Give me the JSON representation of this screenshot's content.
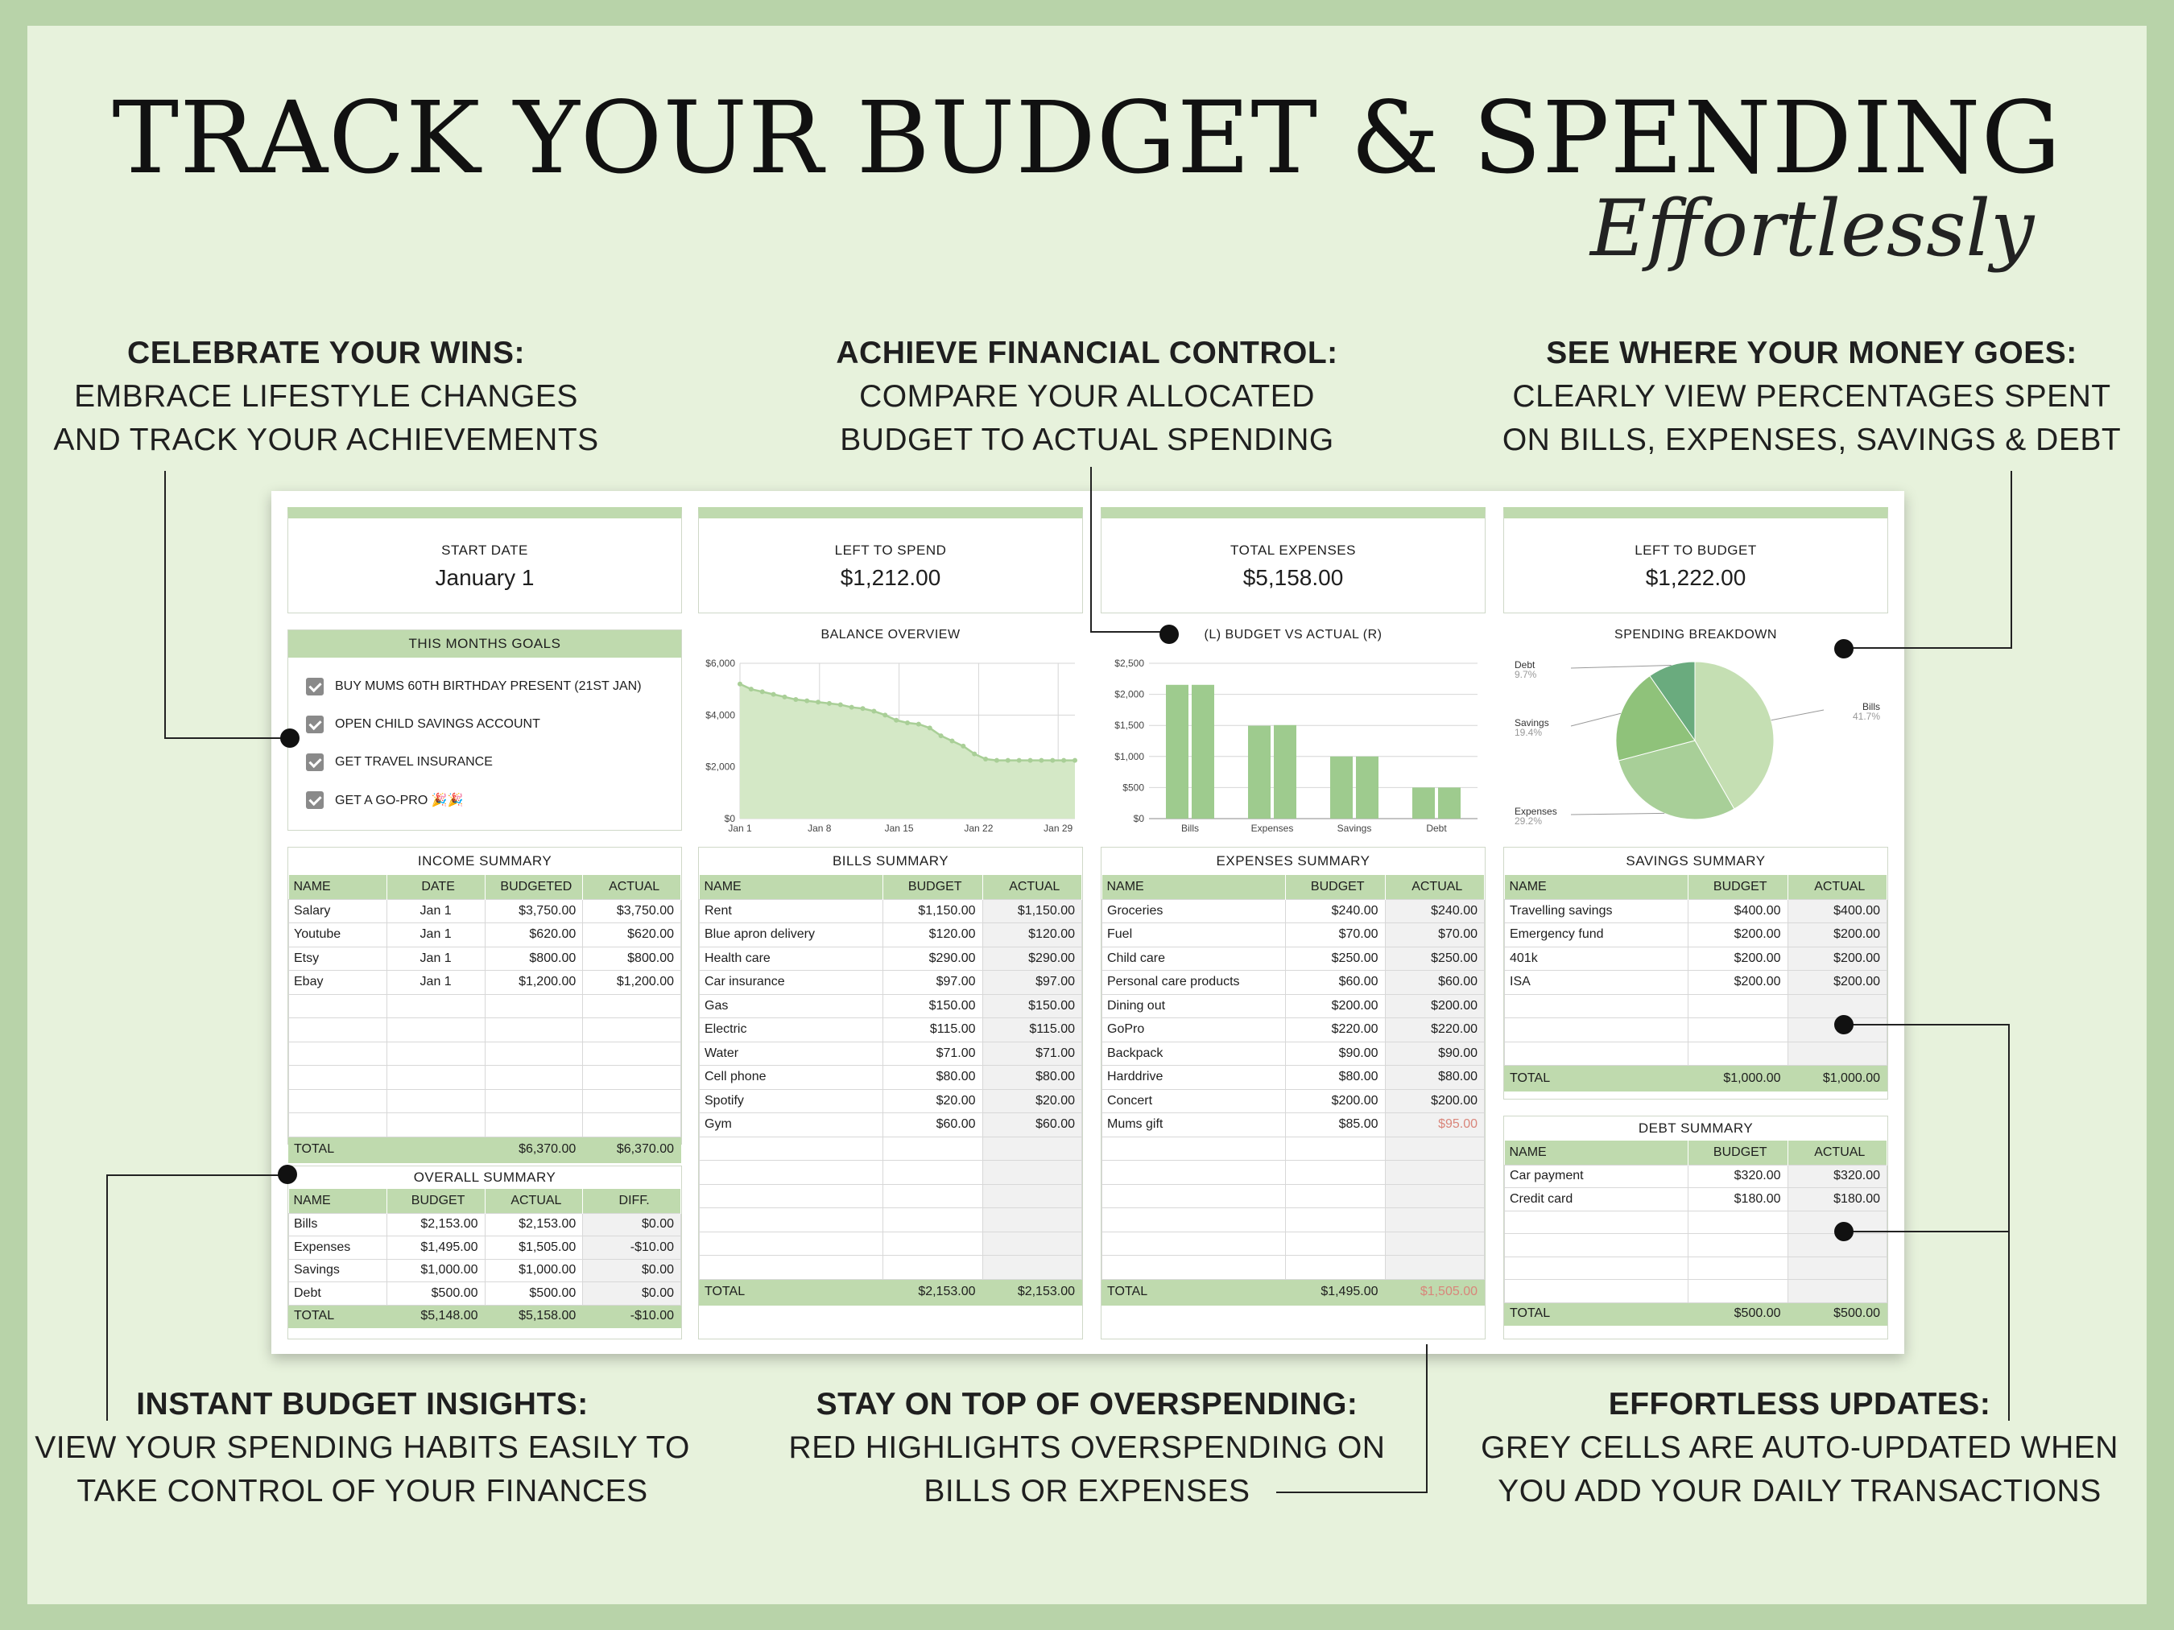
{
  "header": {
    "title": "TRACK YOUR BUDGET & SPENDING",
    "subtitle": "Effortlessly"
  },
  "callouts": {
    "wins": {
      "h": "CELEBRATE YOUR WINS:",
      "l1": "EMBRACE LIFESTYLE CHANGES",
      "l2": "AND TRACK YOUR ACHIEVEMENTS"
    },
    "control": {
      "h": "ACHIEVE FINANCIAL CONTROL:",
      "l1": "COMPARE YOUR ALLOCATED",
      "l2": "BUDGET TO ACTUAL SPENDING"
    },
    "money": {
      "h": "SEE WHERE YOUR MONEY GOES:",
      "l1": "CLEARLY VIEW PERCENTAGES SPENT",
      "l2": "ON BILLS, EXPENSES, SAVINGS & DEBT"
    },
    "insights": {
      "h": "INSTANT BUDGET INSIGHTS:",
      "l1": "VIEW YOUR SPENDING HABITS EASILY TO",
      "l2": "TAKE CONTROL OF YOUR FINANCES"
    },
    "overspend": {
      "h": "STAY ON TOP OF OVERSPENDING:",
      "l1": "RED HIGHLIGHTS OVERSPENDING ON",
      "l2": "BILLS OR EXPENSES"
    },
    "updates": {
      "h": "EFFORTLESS UPDATES:",
      "l1": "GREY CELLS ARE AUTO-UPDATED WHEN",
      "l2": "YOU ADD YOUR DAILY TRANSACTIONS"
    }
  },
  "kpis": {
    "start": {
      "label": "START DATE",
      "value": "January 1"
    },
    "left_spend": {
      "label": "LEFT TO SPEND",
      "value": "$1,212.00"
    },
    "total_exp": {
      "label": "TOTAL EXPENSES",
      "value": "$5,158.00"
    },
    "left_budget": {
      "label": "LEFT TO BUDGET",
      "value": "$1,222.00"
    }
  },
  "goals": {
    "title": "THIS MONTHS GOALS",
    "items": [
      "BUY MUMS 60TH BIRTHDAY PRESENT (21ST JAN)",
      "OPEN CHILD SAVINGS ACCOUNT",
      "GET TRAVEL INSURANCE",
      "GET A GO-PRO 🎉🎉"
    ]
  },
  "balance_chart": {
    "title": "BALANCE OVERVIEW",
    "y_ticks": [
      "$6,000",
      "$4,000",
      "$2,000",
      "$0"
    ],
    "x_ticks": [
      "Jan 1",
      "Jan 8",
      "Jan 15",
      "Jan 22",
      "Jan 29"
    ],
    "values": [
      5200,
      5000,
      4900,
      4800,
      4700,
      4600,
      4550,
      4500,
      4450,
      4400,
      4300,
      4250,
      4150,
      4000,
      3800,
      3700,
      3650,
      3500,
      3200,
      3000,
      2800,
      2500,
      2300,
      2250,
      2250,
      2250,
      2250,
      2250,
      2250,
      2250,
      2250
    ]
  },
  "bva_chart": {
    "title": "(L) BUDGET VS ACTUAL (R)",
    "y_ticks": [
      "$2,500",
      "$2,000",
      "$1,500",
      "$1,000",
      "$500",
      "$0"
    ],
    "categories": [
      "Bills",
      "Expenses",
      "Savings",
      "Debt"
    ],
    "budget": [
      2153,
      1495,
      1000,
      500
    ],
    "actual": [
      2153,
      1505,
      1000,
      500
    ]
  },
  "pie_chart": {
    "title": "SPENDING BREAKDOWN",
    "slices": [
      {
        "name": "Bills",
        "pct": "41.7%",
        "v": 41.7
      },
      {
        "name": "Expenses",
        "pct": "29.2%",
        "v": 29.2
      },
      {
        "name": "Savings",
        "pct": "19.4%",
        "v": 19.4
      },
      {
        "name": "Debt",
        "pct": "9.7%",
        "v": 9.7
      }
    ]
  },
  "income": {
    "title": "INCOME SUMMARY",
    "cols": [
      "NAME",
      "DATE",
      "BUDGETED",
      "ACTUAL"
    ],
    "rows": [
      [
        "Salary",
        "Jan 1",
        "$3,750.00",
        "$3,750.00"
      ],
      [
        "Youtube",
        "Jan 1",
        "$620.00",
        "$620.00"
      ],
      [
        "Etsy",
        "Jan 1",
        "$800.00",
        "$800.00"
      ],
      [
        "Ebay",
        "Jan 1",
        "$1,200.00",
        "$1,200.00"
      ]
    ],
    "total": [
      "TOTAL",
      "",
      "$6,370.00",
      "$6,370.00"
    ]
  },
  "overall": {
    "title": "OVERALL SUMMARY",
    "cols": [
      "NAME",
      "BUDGET",
      "ACTUAL",
      "DIFF."
    ],
    "rows": [
      [
        "Bills",
        "$2,153.00",
        "$2,153.00",
        "$0.00"
      ],
      [
        "Expenses",
        "$1,495.00",
        "$1,505.00",
        "-$10.00"
      ],
      [
        "Savings",
        "$1,000.00",
        "$1,000.00",
        "$0.00"
      ],
      [
        "Debt",
        "$500.00",
        "$500.00",
        "$0.00"
      ]
    ],
    "total": [
      "TOTAL",
      "$5,148.00",
      "$5,158.00",
      "-$10.00"
    ]
  },
  "bills": {
    "title": "BILLS SUMMARY",
    "cols": [
      "NAME",
      "BUDGET",
      "ACTUAL"
    ],
    "rows": [
      [
        "Rent",
        "$1,150.00",
        "$1,150.00"
      ],
      [
        "Blue apron delivery",
        "$120.00",
        "$120.00"
      ],
      [
        "Health care",
        "$290.00",
        "$290.00"
      ],
      [
        "Car insurance",
        "$97.00",
        "$97.00"
      ],
      [
        "Gas",
        "$150.00",
        "$150.00"
      ],
      [
        "Electric",
        "$115.00",
        "$115.00"
      ],
      [
        "Water",
        "$71.00",
        "$71.00"
      ],
      [
        "Cell phone",
        "$80.00",
        "$80.00"
      ],
      [
        "Spotify",
        "$20.00",
        "$20.00"
      ],
      [
        "Gym",
        "$60.00",
        "$60.00"
      ]
    ],
    "total": [
      "TOTAL",
      "$2,153.00",
      "$2,153.00"
    ]
  },
  "expenses": {
    "title": "EXPENSES SUMMARY",
    "cols": [
      "NAME",
      "BUDGET",
      "ACTUAL"
    ],
    "rows": [
      [
        "Groceries",
        "$240.00",
        "$240.00"
      ],
      [
        "Fuel",
        "$70.00",
        "$70.00"
      ],
      [
        "Child care",
        "$250.00",
        "$250.00"
      ],
      [
        "Personal care products",
        "$60.00",
        "$60.00"
      ],
      [
        "Dining out",
        "$200.00",
        "$200.00"
      ],
      [
        "GoPro",
        "$220.00",
        "$220.00"
      ],
      [
        "Backpack",
        "$90.00",
        "$90.00"
      ],
      [
        "Harddrive",
        "$80.00",
        "$80.00"
      ],
      [
        "Concert",
        "$200.00",
        "$200.00"
      ],
      [
        "Mums gift",
        "$85.00",
        "$95.00"
      ]
    ],
    "total": [
      "TOTAL",
      "$1,495.00",
      "$1,505.00"
    ]
  },
  "savings": {
    "title": "SAVINGS SUMMARY",
    "cols": [
      "NAME",
      "BUDGET",
      "ACTUAL"
    ],
    "rows": [
      [
        "Travelling savings",
        "$400.00",
        "$400.00"
      ],
      [
        "Emergency fund",
        "$200.00",
        "$200.00"
      ],
      [
        "401k",
        "$200.00",
        "$200.00"
      ],
      [
        "ISA",
        "$200.00",
        "$200.00"
      ]
    ],
    "total": [
      "TOTAL",
      "$1,000.00",
      "$1,000.00"
    ]
  },
  "debt": {
    "title": "DEBT SUMMARY",
    "cols": [
      "NAME",
      "BUDGET",
      "ACTUAL"
    ],
    "rows": [
      [
        "Car payment",
        "$320.00",
        "$320.00"
      ],
      [
        "Credit card",
        "$180.00",
        "$180.00"
      ]
    ],
    "total": [
      "TOTAL",
      "$500.00",
      "$500.00"
    ]
  },
  "colors": {
    "accent": "#bfdaae",
    "bar": "#9ecb8e",
    "pie": [
      "#c5dfb3",
      "#a8cf98",
      "#8fc27a",
      "#6aab7e"
    ],
    "overspend": "#d9857a"
  }
}
